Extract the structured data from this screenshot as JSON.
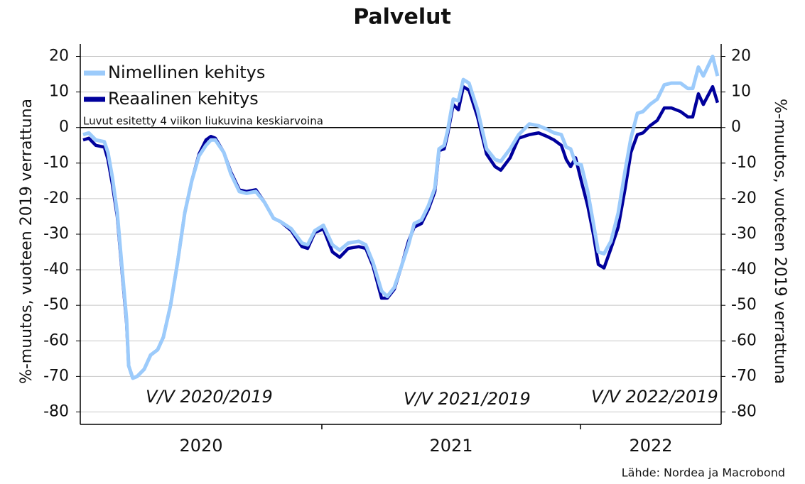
{
  "chart_data": {
    "type": "line",
    "title": "Palvelut",
    "ylabel": "%-muutos, vuoteen 2019 verrattuna",
    "y2label": "%-muutos, vuoteen 2019 verrattuna",
    "note": "Luvut esitetty 4 viikon liukuvina keskiarvoina",
    "annotations": [
      "V/V 2020/2019",
      "V/V 2021/2019",
      "V/V 2022/2019"
    ],
    "source": "Lähde: Nordea ja Macrobond",
    "x": [
      2020.077,
      2020.099,
      2020.126,
      2020.159,
      2020.173,
      2020.19,
      2020.209,
      2020.228,
      2020.245,
      2020.253,
      2020.269,
      2020.286,
      2020.313,
      2020.338,
      2020.365,
      2020.387,
      2020.415,
      2020.442,
      2020.47,
      2020.497,
      2020.525,
      2020.552,
      2020.571,
      2020.588,
      2020.621,
      2020.648,
      2020.681,
      2020.709,
      2020.745,
      2020.778,
      2020.813,
      2020.841,
      2020.882,
      2020.923,
      2020.945,
      2020.973,
      2021.006,
      2021.041,
      2021.069,
      2021.102,
      2021.143,
      2021.17,
      2021.198,
      2021.231,
      2021.253,
      2021.28,
      2021.308,
      2021.335,
      2021.357,
      2021.385,
      2021.412,
      2021.437,
      2021.453,
      2021.473,
      2021.486,
      2021.508,
      2021.528,
      2021.547,
      2021.569,
      2021.602,
      2021.637,
      2021.67,
      2021.692,
      2021.728,
      2021.761,
      2021.802,
      2021.838,
      2021.871,
      2021.898,
      2021.926,
      2021.945,
      2021.962,
      2021.981,
      2022.003,
      2022.028,
      2022.05,
      2022.069,
      2022.091,
      2022.118,
      2022.146,
      2022.173,
      2022.195,
      2022.22,
      2022.242,
      2022.269,
      2022.297,
      2022.324,
      2022.352,
      2022.387,
      2022.415,
      2022.434,
      2022.456,
      2022.475,
      2022.511,
      2022.53
    ],
    "series": [
      {
        "name": "Nimellinen kehitys",
        "color": "#9ccbfb",
        "values": [
          -2,
          -1.5,
          -3.5,
          -4,
          -7,
          -14,
          -24,
          -40,
          -54,
          -67,
          -70.5,
          -70,
          -68,
          -64,
          -62.5,
          -59,
          -50,
          -38,
          -24,
          -15,
          -8,
          -5,
          -3.5,
          -3.5,
          -7,
          -13,
          -18,
          -18.5,
          -18,
          -21,
          -25.5,
          -26.5,
          -28.5,
          -32.5,
          -33,
          -29,
          -27.5,
          -33,
          -34.5,
          -32.5,
          -32,
          -33,
          -38,
          -46,
          -47.5,
          -45,
          -39,
          -33,
          -27,
          -26,
          -22,
          -17,
          -6,
          -5,
          -1,
          8,
          7.5,
          13.5,
          12.5,
          5,
          -6,
          -9,
          -9.5,
          -6,
          -2,
          1,
          0.5,
          -0.5,
          -1.5,
          -2,
          -5.5,
          -6,
          -10,
          -10.5,
          -18,
          -27,
          -35,
          -35.5,
          -32,
          -24,
          -12,
          -3,
          4,
          4.5,
          6.5,
          8,
          12,
          12.5,
          12.5,
          11,
          11,
          17,
          14.5,
          20,
          14.5
        ]
      },
      {
        "name": "Reaalinen kehitys",
        "color": "#00009c",
        "values": [
          -3.5,
          -3,
          -5,
          -5.5,
          -9,
          -16,
          -25,
          -41,
          -55,
          -67,
          -70.5,
          -70,
          -68,
          -64,
          -62.5,
          -59,
          -50,
          -38,
          -24,
          -15,
          -7.5,
          -3.5,
          -2.5,
          -3,
          -7,
          -12.5,
          -17.5,
          -18,
          -17.5,
          -21,
          -25.5,
          -26.5,
          -29,
          -33.5,
          -34,
          -29.5,
          -28.5,
          -35,
          -36.5,
          -34,
          -33.5,
          -34,
          -39,
          -48,
          -48,
          -45.5,
          -39,
          -32,
          -28,
          -27,
          -23,
          -18,
          -6.5,
          -6,
          -2,
          6.5,
          5,
          11.5,
          10.5,
          3,
          -7.5,
          -11,
          -12,
          -8.5,
          -3,
          -2,
          -1.5,
          -2.5,
          -3.5,
          -5,
          -9,
          -11,
          -8.5,
          -15,
          -22,
          -30,
          -38.5,
          -39.5,
          -34,
          -28,
          -17,
          -7,
          -2,
          -1.5,
          0.5,
          2,
          5.5,
          5.5,
          4.5,
          3,
          3,
          9.5,
          6.5,
          11.5,
          7
        ]
      }
    ],
    "xlim": [
      2020.066,
      2022.544
    ],
    "xticks": [
      2021,
      2022
    ],
    "x_period_labels": [
      "2020",
      "2021",
      "2022"
    ],
    "ylim": [
      -83.5,
      23.5
    ],
    "yticks": [
      -80,
      -70,
      -60,
      -50,
      -40,
      -30,
      -20,
      -10,
      0,
      10,
      20
    ],
    "y2lim": [
      -83.5,
      23.5
    ],
    "y2ticks": [
      -80,
      -70,
      -60,
      -50,
      -40,
      -30,
      -20,
      -10,
      0,
      10,
      20
    ],
    "grid": true,
    "legend": "upper left"
  }
}
